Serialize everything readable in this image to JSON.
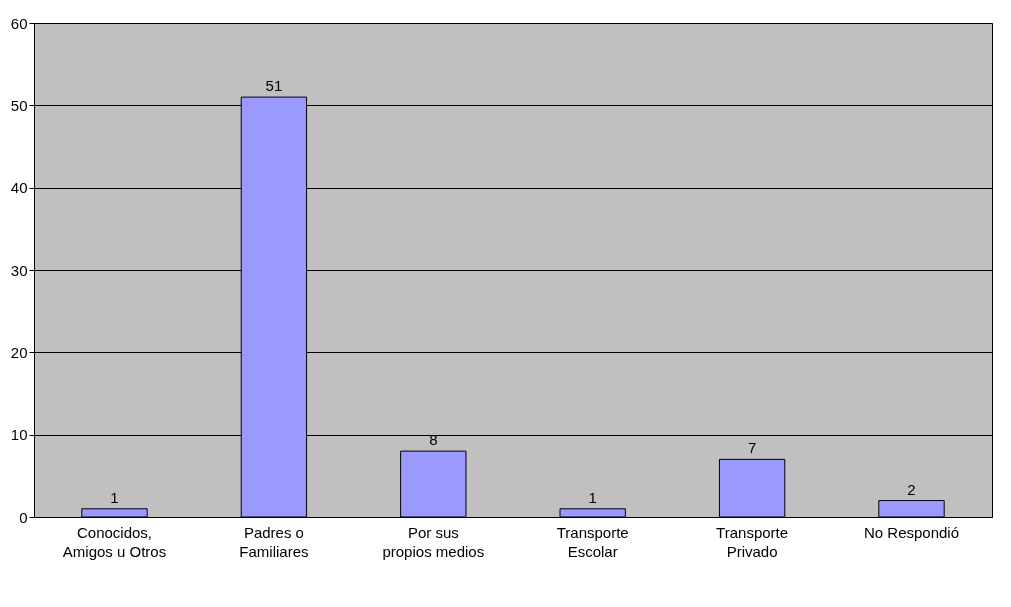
{
  "chart_data": {
    "type": "bar",
    "categories": [
      "Conocidos, Amigos u Otros",
      "Padres o Familiares",
      "Por sus propios medios",
      "Transporte Escolar",
      "Transporte Privado",
      "No Respondió"
    ],
    "values": [
      1,
      51,
      8,
      1,
      7,
      2
    ],
    "color": "#9999ff",
    "ylim": [
      0,
      60
    ],
    "yticks": [
      0,
      10,
      20,
      30,
      40,
      50,
      60
    ],
    "grid": "y",
    "data_labels": true
  }
}
